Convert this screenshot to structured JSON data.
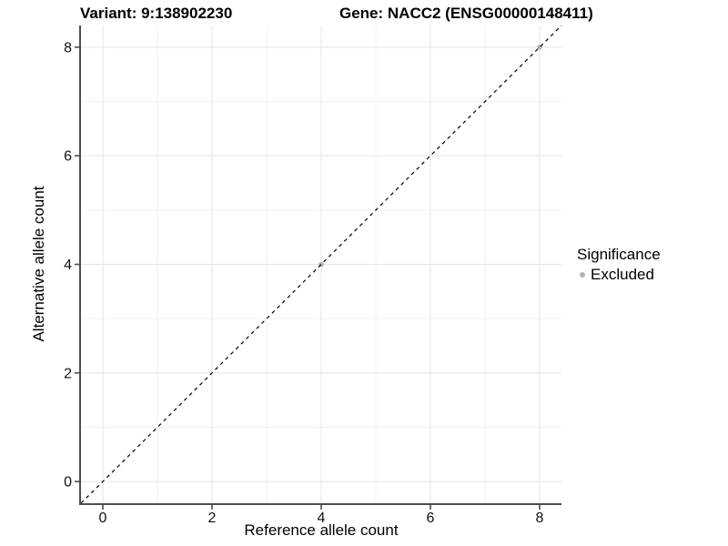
{
  "chart_data": {
    "type": "scatter",
    "title_variant": "Variant: 9:138902230",
    "title_gene": "Gene: NACC2 (ENSG00000148411)",
    "xlabel": "Reference allele count",
    "ylabel": "Alternative allele count",
    "xlim": [
      -0.4,
      8.4
    ],
    "ylim": [
      -0.4,
      8.4
    ],
    "xticks": [
      0,
      2,
      4,
      6,
      8
    ],
    "yticks": [
      0,
      2,
      4,
      6,
      8
    ],
    "minor_gridlines": [
      1,
      3,
      5,
      7
    ],
    "grid": true,
    "legend_position": "right",
    "points": [
      {
        "x": 4,
        "y": 4,
        "significance": "Excluded"
      },
      {
        "x": 8,
        "y": 8,
        "significance": "Excluded"
      }
    ],
    "reference_line": {
      "type": "identity",
      "slope": 1,
      "intercept": 0,
      "style": "dashed",
      "color": "#000000"
    },
    "legend": {
      "title": "Significance",
      "items": [
        {
          "label": "Excluded",
          "color": "#b3b3b3"
        }
      ]
    },
    "style": {
      "point_color": "#b3b3b3",
      "point_radius": 2.8,
      "axis_color": "#4d4d4d",
      "grid_major_color": "#e5e5e5",
      "grid_minor_color": "#f2f2f2",
      "tick_label_color": "#111111",
      "background": "#ffffff"
    }
  }
}
